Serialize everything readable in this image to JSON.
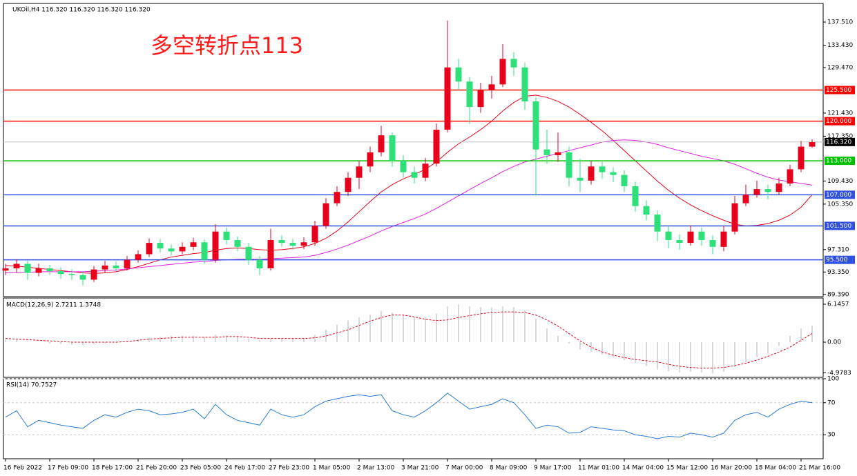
{
  "chart_data": [
    {
      "type": "candlestick",
      "title": "UKOil,H4  116.320 116.320 116.320 116.320",
      "annotation": "多空转折点113",
      "up_color": "#e8001c",
      "down_color": "#2ee07a",
      "categories": [
        "16 Feb 2022",
        null,
        null,
        null,
        "17 Feb 09:00",
        null,
        null,
        null,
        "18 Feb 17:00",
        null,
        null,
        null,
        "21 Feb 20:00",
        null,
        null,
        null,
        "23 Feb 05:00",
        null,
        null,
        null,
        "24 Feb 17:00",
        null,
        null,
        null,
        "27 Feb 23:00",
        null,
        null,
        null,
        "1 Mar 05:00",
        null,
        null,
        null,
        "2 Mar 13:00",
        null,
        null,
        null,
        "3 Mar 21:00",
        null,
        null,
        null,
        "7 Mar 00:00",
        null,
        null,
        null,
        "8 Mar 09:00",
        null,
        null,
        null,
        "9 Mar 17:00",
        null,
        null,
        null,
        "11 Mar 01:00",
        null,
        null,
        null,
        "14 Mar 04:00",
        null,
        null,
        null,
        "15 Mar 12:00",
        null,
        null,
        null,
        "16 Mar 20:00",
        null,
        null,
        null,
        "18 Mar 04:00",
        null,
        null,
        null,
        "21 Mar 16:00",
        null
      ],
      "open": [
        93.6,
        94.0,
        94.8,
        93.2,
        94.0,
        93.5,
        93.0,
        92.8,
        92.0,
        93.8,
        94.5,
        94.0,
        95.5,
        96.5,
        98.5,
        97.5,
        97.0,
        97.8,
        98.6,
        95.5,
        100.5,
        99.0,
        97.8,
        95.5,
        94.0,
        99.0,
        98.5,
        98.0,
        98.6,
        101.5,
        105.5,
        107.5,
        110.0,
        112.0,
        114.5,
        117.5,
        113.0,
        111.0,
        110.0,
        112.5,
        118.5,
        129.5,
        127.0,
        122.5,
        125.5,
        126.5,
        131.0,
        129.5,
        123.5,
        115.0,
        114.0,
        114.5,
        110.0,
        109.5,
        112.0,
        111.0,
        110.5,
        108.5,
        105.0,
        103.5,
        100.5,
        99.0,
        98.5,
        100.5,
        99.0,
        97.8,
        100.5,
        105.5,
        107.0,
        108.0,
        107.5,
        109.0,
        111.5,
        115.5
      ],
      "high": [
        94.8,
        95.6,
        95.4,
        94.8,
        94.6,
        94.2,
        93.8,
        93.4,
        94.4,
        95.3,
        95.2,
        96.2,
        97.2,
        99.3,
        99.2,
        98.2,
        98.6,
        99.4,
        99.2,
        101.8,
        101.2,
        99.6,
        98.5,
        96.2,
        101.0,
        99.8,
        99.2,
        99.5,
        102.4,
        106.4,
        108.5,
        111.0,
        113.0,
        115.5,
        119.2,
        118.0,
        114.0,
        112.0,
        113.5,
        119.6,
        137.8,
        131.0,
        127.8,
        126.8,
        128.0,
        133.6,
        132.2,
        130.3,
        124.3,
        118.5,
        118.0,
        115.5,
        113.3,
        113.0,
        112.8,
        111.8,
        111.3,
        109.3,
        106.0,
        104.2,
        101.5,
        100.0,
        101.6,
        101.2,
        99.8,
        101.5,
        106.8,
        108.8,
        109.5,
        108.8,
        110.0,
        112.3,
        116.5,
        116.8
      ],
      "low": [
        92.8,
        93.2,
        92.0,
        92.6,
        92.8,
        92.2,
        92.0,
        91.0,
        91.6,
        93.2,
        93.4,
        93.6,
        95.0,
        96.0,
        96.8,
        96.3,
        96.5,
        97.2,
        94.8,
        95.0,
        98.2,
        97.0,
        94.6,
        92.8,
        93.6,
        97.8,
        97.3,
        97.4,
        98.0,
        101.0,
        105.0,
        106.8,
        108.0,
        111.0,
        113.8,
        112.0,
        110.0,
        109.0,
        109.4,
        112.0,
        118.0,
        125.5,
        119.5,
        121.5,
        124.0,
        126.0,
        128.0,
        122.0,
        106.8,
        112.5,
        112.8,
        108.5,
        107.5,
        108.8,
        109.8,
        109.2,
        107.5,
        104.0,
        102.5,
        98.8,
        97.5,
        97.3,
        98.0,
        98.0,
        96.5,
        97.0,
        100.0,
        105.0,
        106.5,
        106.2,
        107.0,
        108.5,
        111.0,
        115.3
      ],
      "close": [
        94.0,
        94.8,
        93.2,
        94.0,
        93.5,
        93.0,
        92.8,
        92.0,
        93.8,
        94.5,
        94.0,
        95.5,
        96.5,
        98.5,
        97.5,
        97.0,
        97.8,
        98.6,
        95.5,
        100.5,
        99.0,
        97.8,
        95.5,
        94.0,
        99.0,
        98.5,
        98.0,
        98.6,
        101.5,
        105.5,
        107.5,
        110.0,
        112.0,
        114.5,
        117.5,
        113.0,
        111.0,
        110.0,
        112.5,
        118.5,
        129.5,
        127.0,
        122.5,
        125.5,
        126.5,
        131.0,
        129.5,
        123.5,
        115.0,
        114.0,
        114.5,
        110.0,
        109.5,
        112.0,
        111.0,
        110.5,
        108.5,
        105.0,
        103.5,
        100.5,
        99.0,
        98.5,
        100.5,
        99.0,
        97.8,
        100.5,
        105.5,
        107.0,
        108.0,
        107.5,
        109.0,
        111.5,
        115.5,
        116.3
      ],
      "series": [
        {
          "color": "#e8001c",
          "values": [
            94.5,
            94.4,
            94.2,
            94.0,
            93.8,
            93.6,
            93.4,
            93.2,
            93.1,
            93.2,
            93.4,
            93.8,
            94.3,
            94.9,
            95.5,
            96.0,
            96.3,
            96.6,
            96.8,
            97.2,
            97.5,
            97.6,
            97.5,
            97.3,
            97.2,
            97.3,
            97.5,
            97.8,
            98.4,
            99.3,
            100.6,
            102.2,
            104.0,
            105.8,
            107.5,
            108.8,
            109.8,
            110.6,
            111.5,
            112.8,
            114.5,
            116.0,
            117.2,
            118.5,
            120.0,
            121.8,
            123.3,
            124.4,
            124.6,
            124.2,
            123.5,
            122.5,
            121.2,
            119.8,
            118.3,
            116.6,
            114.8,
            113.0,
            111.2,
            109.4,
            107.8,
            106.4,
            105.2,
            104.2,
            103.3,
            102.5,
            101.8,
            101.5,
            101.6,
            101.9,
            102.5,
            103.4,
            104.8,
            107.0
          ]
        },
        {
          "color": "#e020e0",
          "values": [
            93.2,
            93.3,
            93.3,
            93.4,
            93.4,
            93.4,
            93.4,
            93.4,
            93.5,
            93.6,
            93.7,
            93.9,
            94.1,
            94.3,
            94.5,
            94.7,
            94.9,
            95.1,
            95.2,
            95.4,
            95.5,
            95.6,
            95.6,
            95.6,
            95.7,
            95.8,
            95.9,
            96.0,
            96.3,
            96.8,
            97.4,
            98.1,
            98.9,
            99.7,
            100.6,
            101.4,
            102.1,
            102.8,
            103.6,
            104.6,
            105.7,
            106.8,
            107.9,
            109.0,
            110.0,
            111.1,
            112.0,
            112.8,
            113.3,
            113.8,
            114.3,
            114.8,
            115.3,
            115.8,
            116.3,
            116.6,
            116.7,
            116.6,
            116.3,
            115.9,
            115.3,
            114.8,
            114.3,
            113.8,
            113.4,
            113.0,
            112.4,
            111.6,
            110.8,
            110.1,
            109.6,
            109.3,
            109.0,
            108.7
          ]
        }
      ],
      "levels": [
        {
          "value": 125.5,
          "label": "125.500",
          "color": "#ff0000"
        },
        {
          "value": 120.0,
          "label": "120.000",
          "color": "#ff0000"
        },
        {
          "value": 113.0,
          "label": "113.000",
          "color": "#00c000"
        },
        {
          "value": 107.0,
          "label": "107.000",
          "color": "#3050e0"
        },
        {
          "value": 101.5,
          "label": "101.500",
          "color": "#3050e0"
        },
        {
          "value": 95.5,
          "label": "95.500",
          "color": "#3050e0"
        }
      ],
      "last_price": {
        "value": 116.32,
        "label": "116.320"
      },
      "ylim": [
        89.0,
        140.8
      ],
      "yticks": [
        {
          "value": 137.51,
          "label": "137.510"
        },
        {
          "value": 133.43,
          "label": "133.430"
        },
        {
          "value": 129.47,
          "label": "129.470"
        },
        {
          "value": 121.43,
          "label": "121.430"
        },
        {
          "value": 117.35,
          "label": "117.350"
        },
        {
          "value": 109.43,
          "label": "109.430"
        },
        {
          "value": 105.35,
          "label": "105.350"
        },
        {
          "value": 97.31,
          "label": "97.310"
        },
        {
          "value": 93.35,
          "label": "93.350"
        },
        {
          "value": 89.39,
          "label": "89.390"
        }
      ]
    },
    {
      "type": "macd",
      "title": "MACD(12,26,9) 2.7211 1.3748",
      "color": "#b0b0b0",
      "signal_color": "#e8001c",
      "values": [
        0.4,
        0.3,
        0.1,
        0.0,
        -0.2,
        -0.3,
        -0.4,
        -0.5,
        -0.3,
        -0.2,
        -0.1,
        0.1,
        0.4,
        0.7,
        0.9,
        1.0,
        1.0,
        1.0,
        0.8,
        1.2,
        1.1,
        0.9,
        0.6,
        0.3,
        0.5,
        0.6,
        0.6,
        0.7,
        1.2,
        2.0,
        2.8,
        3.5,
        4.0,
        4.5,
        5.0,
        4.8,
        4.4,
        4.1,
        4.0,
        4.6,
        5.8,
        6.1,
        5.8,
        5.7,
        5.6,
        5.8,
        5.7,
        5.2,
        3.8,
        2.2,
        1.0,
        -0.2,
        -1.2,
        -1.6,
        -2.0,
        -2.4,
        -2.9,
        -3.4,
        -3.9,
        -4.4,
        -4.7,
        -4.9,
        -4.8,
        -4.9,
        -5.0,
        -4.8,
        -4.0,
        -3.2,
        -2.4,
        -1.8,
        -0.6,
        1.0,
        2.2,
        2.7
      ],
      "signal": [
        0.6,
        0.5,
        0.4,
        0.3,
        0.2,
        0.1,
        0.0,
        0.0,
        0.0,
        0.0,
        0.0,
        0.1,
        0.3,
        0.5,
        0.6,
        0.7,
        0.8,
        0.8,
        0.8,
        0.8,
        0.9,
        0.9,
        0.8,
        0.6,
        0.6,
        0.6,
        0.6,
        0.6,
        0.7,
        1.0,
        1.5,
        2.0,
        2.7,
        3.4,
        4.0,
        4.4,
        4.4,
        4.1,
        3.7,
        3.5,
        3.6,
        4.0,
        4.3,
        4.6,
        4.8,
        4.9,
        4.9,
        4.8,
        4.4,
        3.6,
        2.6,
        1.4,
        0.2,
        -0.8,
        -1.6,
        -2.1,
        -2.5,
        -2.8,
        -3.0,
        -3.2,
        -3.6,
        -3.9,
        -4.1,
        -4.2,
        -4.2,
        -4.1,
        -3.8,
        -3.4,
        -2.9,
        -2.3,
        -1.6,
        -0.8,
        0.3,
        1.4
      ],
      "ylim": [
        -5.7,
        7.15
      ],
      "yticks": [
        6.1457,
        {
          "value": 0,
          "label": "0.00"
        },
        -4.9783
      ]
    },
    {
      "type": "line",
      "title": "RSI(14) 70.7527",
      "color": "#2b7bd6",
      "values": [
        52,
        60,
        40,
        48,
        45,
        42,
        40,
        38,
        48,
        55,
        52,
        58,
        62,
        60,
        55,
        56,
        58,
        62,
        50,
        68,
        55,
        48,
        45,
        42,
        62,
        55,
        52,
        55,
        65,
        72,
        75,
        78,
        80,
        78,
        80,
        60,
        55,
        52,
        60,
        70,
        82,
        72,
        62,
        65,
        68,
        75,
        70,
        55,
        38,
        42,
        40,
        32,
        33,
        40,
        38,
        36,
        35,
        30,
        28,
        25,
        28,
        27,
        32,
        30,
        27,
        32,
        48,
        55,
        58,
        52,
        62,
        68,
        72,
        70
      ],
      "ylim": [
        0,
        100
      ],
      "yticks": [
        30,
        70,
        100
      ],
      "grid": true
    }
  ]
}
